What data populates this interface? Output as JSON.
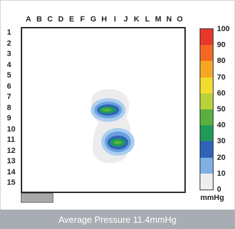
{
  "columns": [
    "A",
    "B",
    "C",
    "D",
    "E",
    "F",
    "G",
    "H",
    "I",
    "J",
    "K",
    "L",
    "M",
    "N",
    "O"
  ],
  "rows": [
    "1",
    "2",
    "3",
    "4",
    "5",
    "6",
    "7",
    "8",
    "9",
    "10",
    "11",
    "12",
    "13",
    "14",
    "15"
  ],
  "legend": {
    "labels": [
      "100",
      "90",
      "80",
      "70",
      "60",
      "50",
      "40",
      "30",
      "20",
      "10",
      "0"
    ],
    "unit": "mmHg",
    "colors": [
      "#e8382b",
      "#f26a22",
      "#f5a623",
      "#f2dc2e",
      "#b9d23a",
      "#5aaf3f",
      "#1f9a58",
      "#2f63b8",
      "#7fb0e6",
      "#eeeeee"
    ]
  },
  "footer": {
    "text": "Average Pressure 11.4mmHg"
  }
}
